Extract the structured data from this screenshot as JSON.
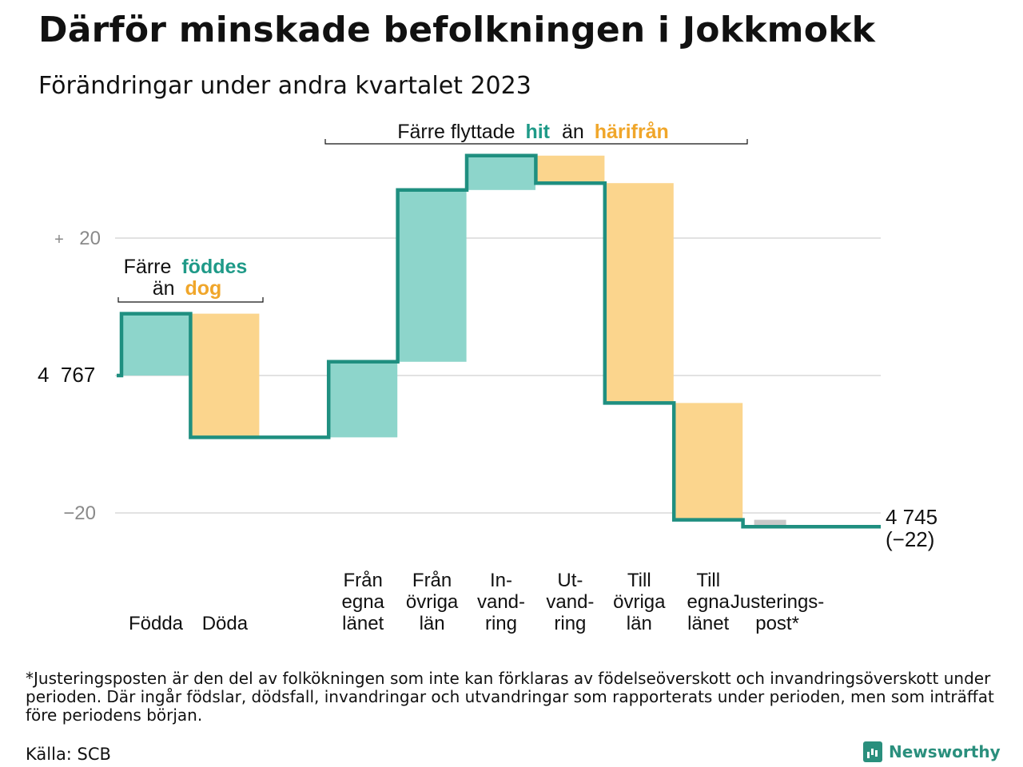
{
  "header": {
    "title": "Därför minskade befolkningen i Jokkmokk",
    "subtitle": "Förändringar under andra kvartalet 2023"
  },
  "annotations": {
    "births_line1": "Färre",
    "births_hl1": "föddes",
    "births_line2": "än",
    "births_hl2": "dog",
    "moves_prefix": "Färre flyttade",
    "moves_hl1": "hit",
    "moves_mid": "än",
    "moves_hl2": "härifrån"
  },
  "axis": {
    "start_label": "4  767",
    "end_label_value": "4 745",
    "end_label_change": "(−22)",
    "tick_plus_sign": "+",
    "tick_plus": "20",
    "tick_minus": "−20"
  },
  "chart_data": {
    "type": "waterfall",
    "title": "Därför minskade befolkningen i Jokkmokk",
    "subtitle": "Förändringar under andra kvartalet 2023",
    "start_value": 4767,
    "end_value": 4745,
    "net_change": -22,
    "y_relative_ticks": [
      20,
      0,
      -20
    ],
    "y_relative_range": [
      -22,
      32
    ],
    "categories": [
      {
        "label": [
          "Födda"
        ],
        "value": 9,
        "kind": "in"
      },
      {
        "label": [
          "Döda"
        ],
        "value": -18,
        "kind": "out"
      },
      {
        "label": [
          "Från",
          "egna",
          "länet"
        ],
        "value": 11,
        "kind": "in"
      },
      {
        "label": [
          "Från",
          "övriga",
          "län"
        ],
        "value": 25,
        "kind": "in"
      },
      {
        "label": [
          "In-",
          "vand-",
          "ring"
        ],
        "value": 5,
        "kind": "in"
      },
      {
        "label": [
          "Ut-",
          "vand-",
          "ring"
        ],
        "value": -4,
        "kind": "out"
      },
      {
        "label": [
          "Till",
          "övriga",
          "län"
        ],
        "value": -32,
        "kind": "out"
      },
      {
        "label": [
          "Till",
          "egna",
          "länet"
        ],
        "value": -17,
        "kind": "out"
      },
      {
        "label": [
          "Justerings-",
          "post*"
        ],
        "value": -1,
        "kind": "adjust"
      }
    ],
    "colors": {
      "in": "#8dd5cb",
      "out": "#fbd58d",
      "adjust": "#c8c8c8",
      "line": "#1f8f80",
      "highlight_in": "#1f9a88",
      "highlight_out": "#f0a62a",
      "grid": "#e2e2e2",
      "tick_text": "#8a8a8a"
    }
  },
  "footer": {
    "footnote": "*Justeringsposten är den del av folkökningen som inte kan förklaras av födelseöverskott och invandringsöverskott under perioden. Där ingår födslar, dödsfall, invandringar och utvandringar som rapporterats under perioden, men som inträffat före periodens början.",
    "source": "Källa: SCB",
    "brand": "Newsworthy"
  }
}
